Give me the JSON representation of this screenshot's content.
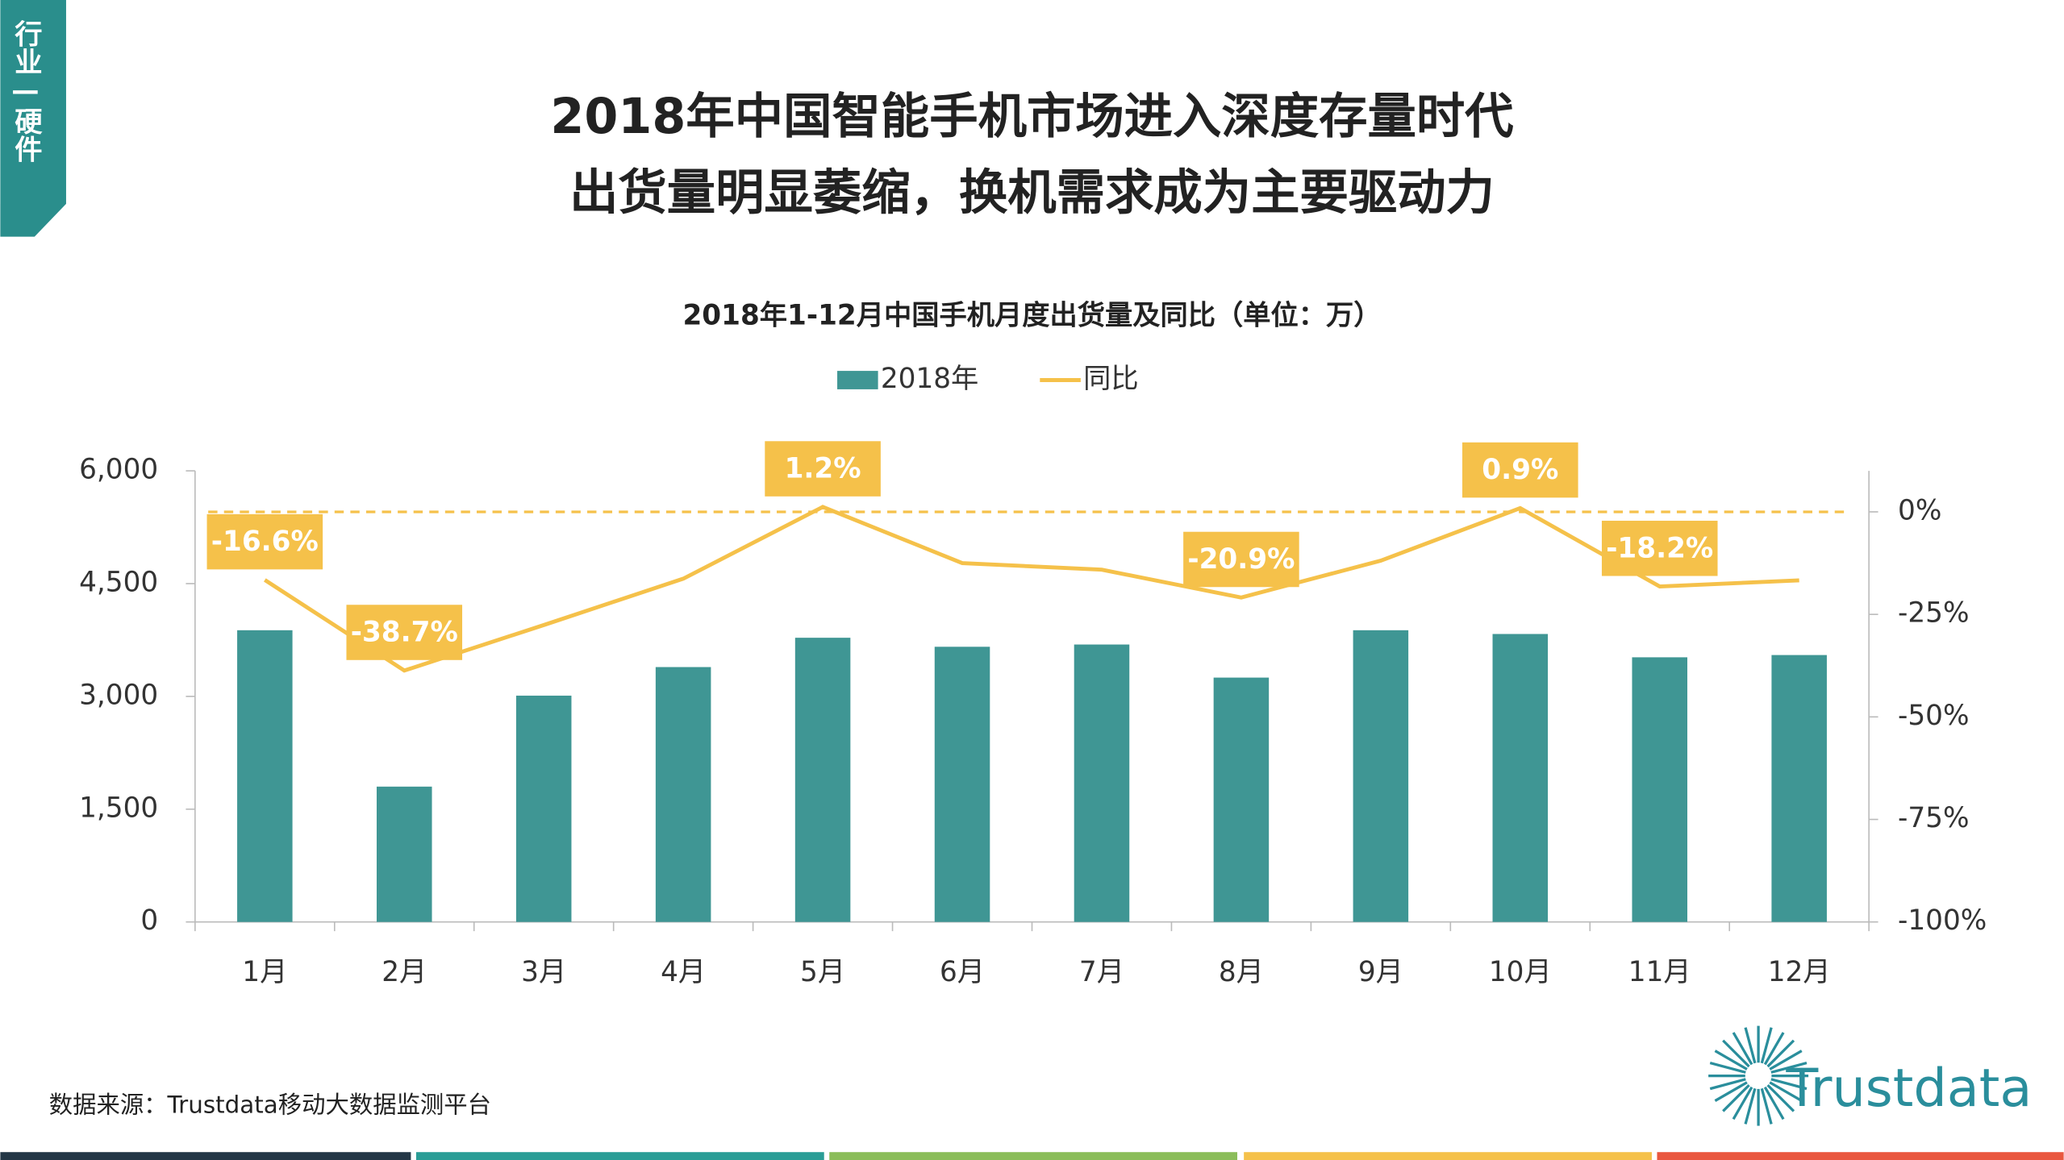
{
  "header": {
    "tab": "行业—硬件",
    "title": [
      "2018年中国智能手机市场进入深度存量时代",
      "出货量明显萎缩，换机需求成为主要驱动力"
    ]
  },
  "chart_data": {
    "type": "bar",
    "title": "2018年1-12月中国手机月度出货量及同比（单位：万）",
    "categories": [
      "1月",
      "2月",
      "3月",
      "4月",
      "5月",
      "6月",
      "7月",
      "8月",
      "9月",
      "10月",
      "11月",
      "12月"
    ],
    "series": [
      {
        "name": "2018年",
        "type": "bar",
        "color": "#3f9694",
        "values": [
          3880,
          1800,
          3010,
          3390,
          3780,
          3660,
          3690,
          3250,
          3880,
          3830,
          3520,
          3550
        ]
      },
      {
        "name": "同比",
        "type": "line",
        "axis": "y2",
        "color": "#f5c14a",
        "values": [
          -16.6,
          -38.7,
          -27.6,
          -16.3,
          1.2,
          -12.5,
          -14.1,
          -20.9,
          -11.9,
          0.9,
          -18.2,
          -16.7
        ],
        "value_labels": [
          "-16.6%",
          "-38.7%",
          null,
          null,
          "1.2%",
          null,
          null,
          "-20.9%",
          null,
          "0.9%",
          "-18.2%",
          null
        ]
      }
    ],
    "ylim": [
      0,
      6000
    ],
    "yticks": [
      0,
      {
        "value": 1500,
        "label": "1,500"
      },
      {
        "value": 3000,
        "label": "3,000"
      },
      {
        "value": 4500,
        "label": "4,500"
      },
      {
        "value": 6000,
        "label": "6,000"
      }
    ],
    "y2lim": [
      -100,
      10
    ],
    "y2ticks": [
      {
        "value": -100,
        "label": "-100%"
      },
      {
        "value": -75,
        "label": "-75%"
      },
      {
        "value": -50,
        "label": "-50%"
      },
      {
        "value": -25,
        "label": "-25%"
      },
      {
        "value": 0,
        "label": "0%"
      }
    ],
    "legend": "top"
  },
  "footer": {
    "source": "数据来源：Trustdata移动大数据监测平台",
    "logo": "Trustdata"
  }
}
